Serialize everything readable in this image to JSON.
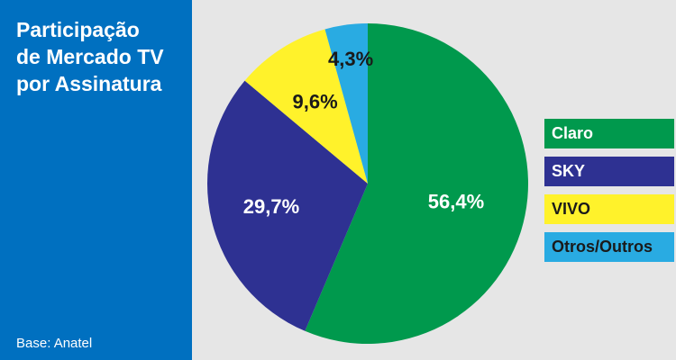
{
  "title_lines": [
    "Participação",
    "de Mercado TV",
    "por Assinatura"
  ],
  "source": "Base: Anatel",
  "colors": {
    "sidebar": "#0070c0",
    "background": "#e6e6e6"
  },
  "chart_data": {
    "type": "pie",
    "title": "Participação de Mercado TV por Assinatura",
    "start_angle_deg": 0,
    "direction": "clockwise",
    "slices": [
      {
        "name": "Claro",
        "value": 56.4,
        "label": "56,4%",
        "color": "#00994d",
        "label_color": "#ffffff",
        "legend_text_color": "#ffffff"
      },
      {
        "name": "SKY",
        "value": 29.7,
        "label": "29,7%",
        "color": "#2e3192",
        "label_color": "#ffffff",
        "legend_text_color": "#ffffff"
      },
      {
        "name": "VIVO",
        "value": 9.6,
        "label": "9,6%",
        "color": "#fff22b",
        "label_color": "#1a1a1a",
        "legend_text_color": "#1a1a1a"
      },
      {
        "name": "Otros/Outros",
        "value": 4.3,
        "label": "4,3%",
        "color": "#29abe2",
        "label_color": "#1a1a1a",
        "legend_text_color": "#1a1a1a"
      }
    ],
    "legend_placement": "right"
  }
}
